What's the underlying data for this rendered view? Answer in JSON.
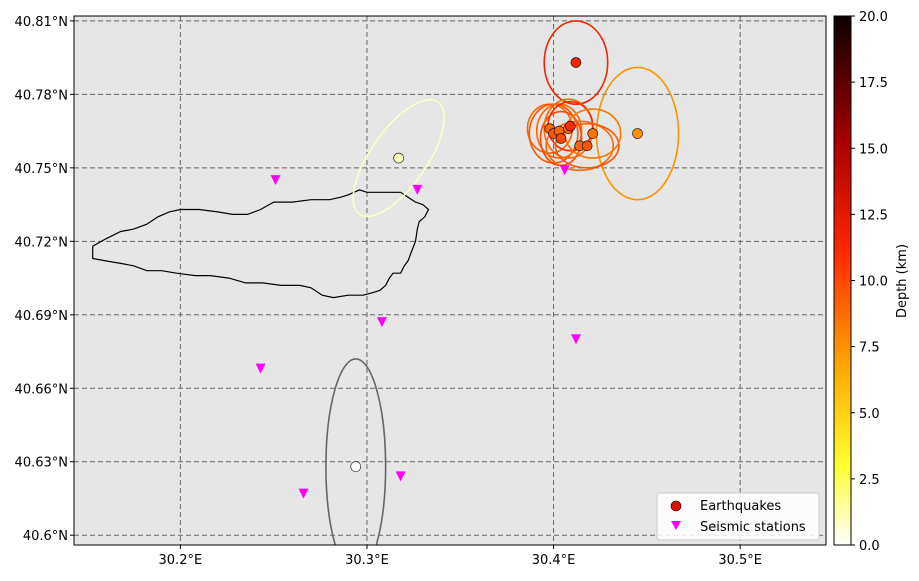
{
  "chart_data": {
    "type": "scatter",
    "x_range": [
      30.143,
      30.546
    ],
    "y_range": [
      30.596,
      40.812
    ],
    "y_range_fixed": [
      40.596,
      40.812
    ],
    "x_ticks": [
      30.2,
      30.3,
      30.4,
      30.5
    ],
    "x_tick_labels": [
      "30.2°E",
      "30.3°E",
      "30.4°E",
      "30.5°E"
    ],
    "y_ticks": [
      40.6,
      40.63,
      40.66,
      40.69,
      40.72,
      40.75,
      40.78,
      40.81
    ],
    "y_tick_labels": [
      "40.6°N",
      "40.63°N",
      "40.66°N",
      "40.69°N",
      "40.72°N",
      "40.75°N",
      "40.78°N",
      "40.81°N"
    ],
    "grid": true,
    "legend": {
      "placement": "bottom-right",
      "entries": [
        {
          "label": "Earthquakes",
          "color": "#e01000",
          "marker": "circle"
        },
        {
          "label": "Seismic stations",
          "color": "#ff00ff",
          "marker": "triangle-down"
        }
      ]
    },
    "colorbar": {
      "label": "Depth (km)",
      "range": [
        0.0,
        20.0
      ],
      "ticks": [
        0.0,
        2.5,
        5.0,
        7.5,
        10.0,
        12.5,
        15.0,
        17.5,
        20.0
      ],
      "tick_labels": [
        "0.0",
        "2.5",
        "5.0",
        "7.5",
        "10.0",
        "12.5",
        "15.0",
        "17.5",
        "20.0"
      ],
      "colormap": "hot_r"
    },
    "earthquakes": [
      {
        "lon": 30.412,
        "lat": 40.793,
        "depth": 11.5,
        "ellipse": {
          "rx": 0.017,
          "ry": 0.017,
          "angle": 0,
          "rx_frac": 0.017
        }
      },
      {
        "lon": 30.445,
        "lat": 40.764,
        "depth": 7.5,
        "ellipse": {
          "rx": 0.022,
          "ry": 0.027,
          "angle": 0
        }
      },
      {
        "lon": 30.398,
        "lat": 40.766,
        "depth": 9.0,
        "ellipse": {
          "rx": 0.012,
          "ry": 0.01,
          "angle": 0
        }
      },
      {
        "lon": 30.4,
        "lat": 40.764,
        "depth": 9.5,
        "ellipse": {
          "rx": 0.013,
          "ry": 0.012,
          "angle": 0
        }
      },
      {
        "lon": 30.403,
        "lat": 40.765,
        "depth": 9.0,
        "ellipse": {
          "rx": 0.012,
          "ry": 0.011,
          "angle": 0
        }
      },
      {
        "lon": 30.404,
        "lat": 40.762,
        "depth": 10.0,
        "ellipse": {
          "rx": 0.011,
          "ry": 0.011,
          "angle": 0
        }
      },
      {
        "lon": 30.408,
        "lat": 40.766,
        "depth": 9.0,
        "ellipse": {
          "rx": 0.013,
          "ry": 0.012,
          "angle": 0
        }
      },
      {
        "lon": 30.409,
        "lat": 40.767,
        "depth": 11.0,
        "ellipse": {
          "rx": 0.012,
          "ry": 0.01,
          "angle": 0
        }
      },
      {
        "lon": 30.414,
        "lat": 40.759,
        "depth": 9.0,
        "ellipse": {
          "rx": 0.018,
          "ry": 0.01,
          "angle": 0
        }
      },
      {
        "lon": 30.418,
        "lat": 40.759,
        "depth": 9.5,
        "ellipse": {
          "rx": 0.017,
          "ry": 0.009,
          "angle": 0
        }
      },
      {
        "lon": 30.421,
        "lat": 40.764,
        "depth": 8.5,
        "ellipse": {
          "rx": 0.015,
          "ry": 0.01,
          "angle": 0
        }
      },
      {
        "lon": 30.317,
        "lat": 40.754,
        "depth": 0.8,
        "ellipse": {
          "rx": 0.015,
          "ry": 0.028,
          "angle": 35
        }
      },
      {
        "lon": 30.294,
        "lat": 40.628,
        "depth": 0.0,
        "ellipse": {
          "rx": 0.016,
          "ry": 0.044,
          "angle": 0
        }
      }
    ],
    "stations": [
      {
        "lon": 30.251,
        "lat": 40.745
      },
      {
        "lon": 30.327,
        "lat": 40.741
      },
      {
        "lon": 30.406,
        "lat": 40.749
      },
      {
        "lon": 30.308,
        "lat": 40.687
      },
      {
        "lon": 30.412,
        "lat": 40.68
      },
      {
        "lon": 30.243,
        "lat": 40.668
      },
      {
        "lon": 30.266,
        "lat": 40.617
      },
      {
        "lon": 30.318,
        "lat": 40.624
      }
    ],
    "outline": [
      [
        30.153,
        40.718
      ],
      [
        30.16,
        40.721
      ],
      [
        30.168,
        40.724
      ],
      [
        30.175,
        40.725
      ],
      [
        30.182,
        40.727
      ],
      [
        30.188,
        40.73
      ],
      [
        30.194,
        40.732
      ],
      [
        30.2,
        40.733
      ],
      [
        30.21,
        40.733
      ],
      [
        30.22,
        40.732
      ],
      [
        30.228,
        40.731
      ],
      [
        30.236,
        40.731
      ],
      [
        30.243,
        40.733
      ],
      [
        30.25,
        40.736
      ],
      [
        30.26,
        40.736
      ],
      [
        30.27,
        40.737
      ],
      [
        30.28,
        40.737
      ],
      [
        30.286,
        40.738
      ],
      [
        30.29,
        40.739
      ],
      [
        30.293,
        40.74
      ],
      [
        30.296,
        40.741
      ],
      [
        30.3,
        40.74
      ],
      [
        30.306,
        40.74
      ],
      [
        30.312,
        40.74
      ],
      [
        30.318,
        40.74
      ],
      [
        30.322,
        40.738
      ],
      [
        30.326,
        40.736
      ],
      [
        30.33,
        40.735
      ],
      [
        30.333,
        40.733
      ],
      [
        30.331,
        40.73
      ],
      [
        30.328,
        40.728
      ],
      [
        30.327,
        40.725
      ],
      [
        30.326,
        40.72
      ],
      [
        30.324,
        40.716
      ],
      [
        30.322,
        40.712
      ],
      [
        30.32,
        40.71
      ],
      [
        30.318,
        40.707
      ],
      [
        30.314,
        40.707
      ],
      [
        30.312,
        40.705
      ],
      [
        30.31,
        40.702
      ],
      [
        30.307,
        40.7
      ],
      [
        30.303,
        40.699
      ],
      [
        30.298,
        40.698
      ],
      [
        30.29,
        40.698
      ],
      [
        30.282,
        40.697
      ],
      [
        30.276,
        40.698
      ],
      [
        30.27,
        40.701
      ],
      [
        30.264,
        40.702
      ],
      [
        30.254,
        40.702
      ],
      [
        30.244,
        40.703
      ],
      [
        30.235,
        40.703
      ],
      [
        30.226,
        40.705
      ],
      [
        30.216,
        40.706
      ],
      [
        30.208,
        40.706
      ],
      [
        30.198,
        40.707
      ],
      [
        30.19,
        40.708
      ],
      [
        30.182,
        40.708
      ],
      [
        30.175,
        40.71
      ],
      [
        30.168,
        40.711
      ],
      [
        30.16,
        40.712
      ],
      [
        30.153,
        40.713
      ],
      [
        30.153,
        40.718
      ]
    ]
  }
}
